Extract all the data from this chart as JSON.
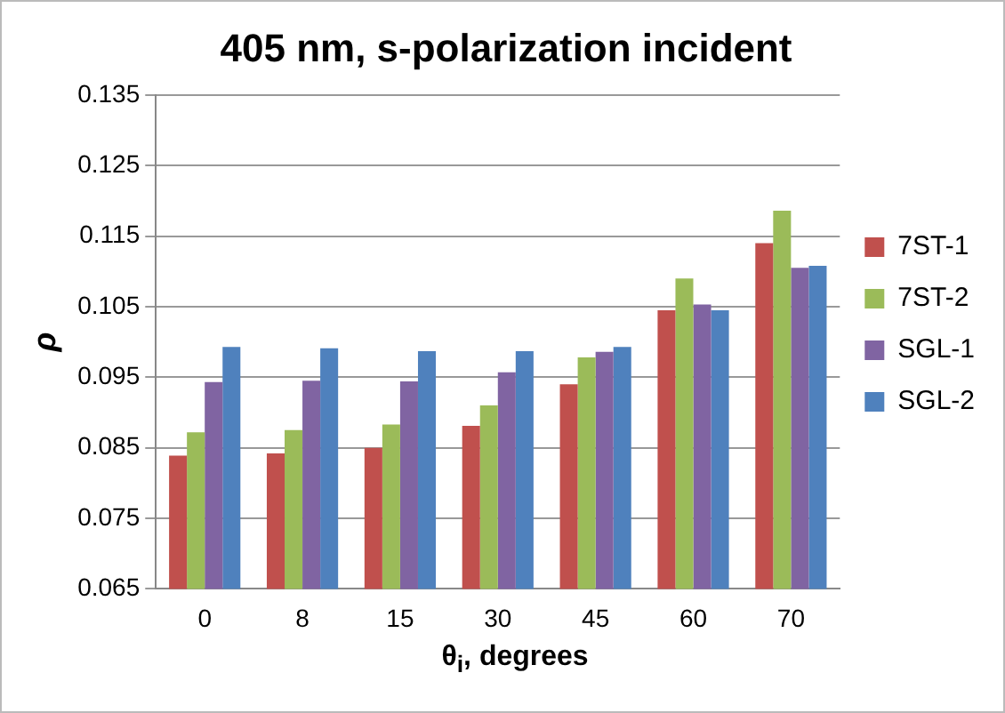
{
  "chart_data": {
    "type": "bar",
    "title": "405 nm, s-polarization incident",
    "xlabel": "θ$_{i}$, degrees",
    "ylabel": "ρ",
    "categories": [
      "0",
      "8",
      "15",
      "30",
      "45",
      "60",
      "70"
    ],
    "series": [
      {
        "name": "7ST-1",
        "color": "#c0504d",
        "values": [
          0.0839,
          0.0842,
          0.085,
          0.0881,
          0.094,
          0.1045,
          0.114
        ]
      },
      {
        "name": "7ST-2",
        "color": "#9bbb59",
        "values": [
          0.0872,
          0.0875,
          0.0883,
          0.091,
          0.0978,
          0.109,
          0.1186
        ]
      },
      {
        "name": "SGL-1",
        "color": "#8064a2",
        "values": [
          0.0943,
          0.0945,
          0.0944,
          0.0957,
          0.0986,
          0.1053,
          0.1105
        ]
      },
      {
        "name": "SGL-2",
        "color": "#4f81bd",
        "values": [
          0.0993,
          0.0991,
          0.0987,
          0.0987,
          0.0993,
          0.1045,
          0.1108
        ]
      }
    ],
    "ylim": [
      0.065,
      0.135
    ],
    "yticks": [
      0.065,
      0.075,
      0.085,
      0.095,
      0.105,
      0.115,
      0.125,
      0.135
    ],
    "grid": "y",
    "legend": "right"
  }
}
